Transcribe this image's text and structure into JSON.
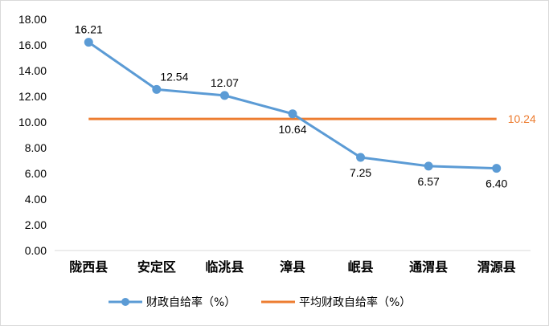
{
  "chart_data": {
    "type": "line",
    "categories": [
      "陇西县",
      "安定区",
      "临洮县",
      "漳县",
      "岷县",
      "通渭县",
      "渭源县"
    ],
    "series": [
      {
        "name": "财政自给率（%）",
        "values": [
          16.21,
          12.54,
          12.07,
          10.64,
          7.25,
          6.57,
          6.4
        ],
        "color": "#5B9BD5",
        "labels": [
          "16.21",
          "12.54",
          "12.07",
          "10.64",
          "7.25",
          "6.57",
          "6.40"
        ]
      },
      {
        "name": "平均财政自给率（%）",
        "values": [
          10.24,
          10.24,
          10.24,
          10.24,
          10.24,
          10.24,
          10.24
        ],
        "color": "#ED7D31",
        "label": "10.24"
      }
    ],
    "yticks": [
      "0.00",
      "2.00",
      "4.00",
      "6.00",
      "8.00",
      "10.00",
      "12.00",
      "14.00",
      "16.00",
      "18.00"
    ],
    "ylim": [
      0,
      18
    ],
    "grid": false,
    "legend": "bottom"
  }
}
